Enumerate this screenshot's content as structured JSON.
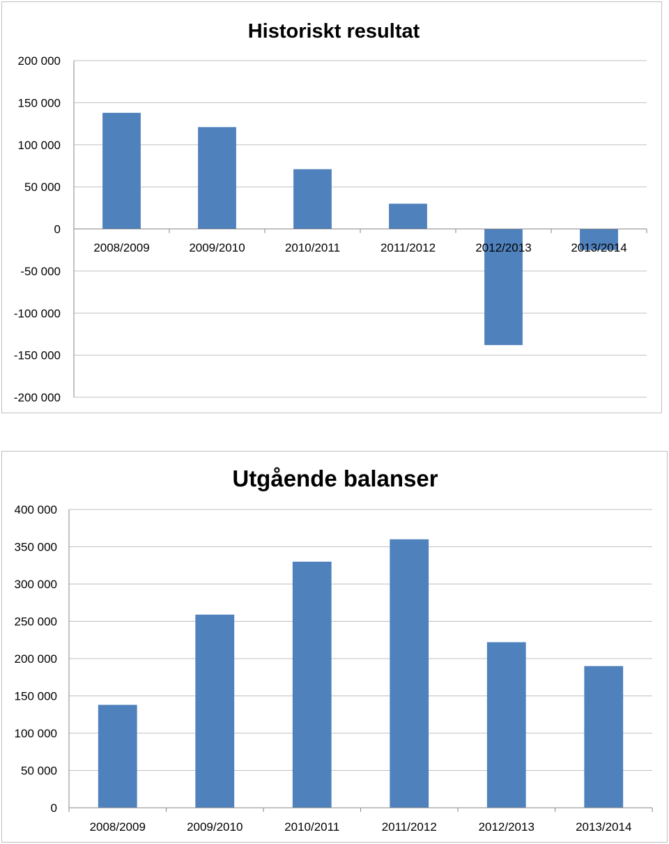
{
  "colors": {
    "bar": "#4f81bd",
    "grid": "#bfbfbf",
    "axis": "#868686"
  },
  "chart_data": [
    {
      "type": "bar",
      "title": "Historiskt resultat",
      "categories": [
        "2008/2009",
        "2009/2010",
        "2010/2011",
        "2011/2012",
        "2012/2013",
        "2013/2014"
      ],
      "values": [
        138000,
        121000,
        71000,
        30000,
        -138000,
        -25000
      ],
      "ylim": [
        -200000,
        200000
      ],
      "yticks": [
        200000,
        150000,
        100000,
        50000,
        0,
        -50000,
        -100000,
        -150000,
        -200000
      ],
      "ytick_labels": [
        "200 000",
        "150 000",
        "100 000",
        "50 000",
        "0",
        "-50 000",
        "-100 000",
        "-150 000",
        "-200 000"
      ],
      "grid": true,
      "legend": false
    },
    {
      "type": "bar",
      "title": "Utgående balanser",
      "categories": [
        "2008/2009",
        "2009/2010",
        "2010/2011",
        "2011/2012",
        "2012/2013",
        "2013/2014"
      ],
      "values": [
        138000,
        259000,
        330000,
        360000,
        222000,
        190000
      ],
      "ylim": [
        0,
        400000
      ],
      "yticks": [
        400000,
        350000,
        300000,
        250000,
        200000,
        150000,
        100000,
        50000,
        0
      ],
      "ytick_labels": [
        "400 000",
        "350 000",
        "300 000",
        "250 000",
        "200 000",
        "150 000",
        "100 000",
        "50 000",
        "0"
      ],
      "grid": true,
      "legend": false
    }
  ]
}
